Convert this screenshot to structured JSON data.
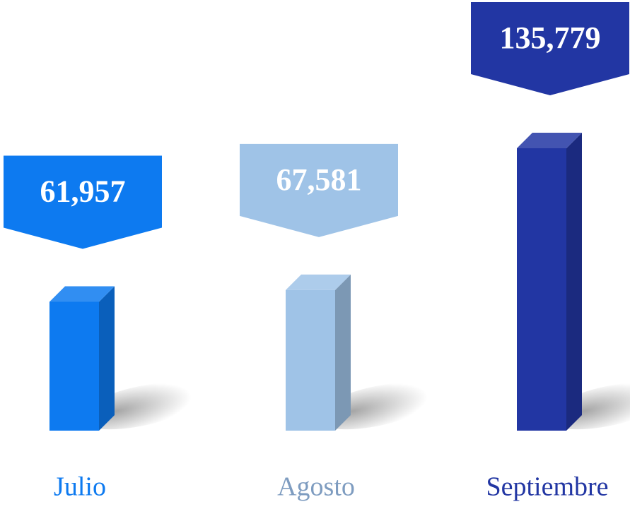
{
  "chart_data": {
    "type": "bar3d",
    "categories": [
      "Julio",
      "Agosto",
      "Septiembre"
    ],
    "values": [
      61957,
      67581,
      135779
    ],
    "value_labels": [
      "61,957",
      "67,581",
      "135,779"
    ],
    "colors": [
      "#0d7af0",
      "#9fc3e7",
      "#2236a3"
    ]
  }
}
